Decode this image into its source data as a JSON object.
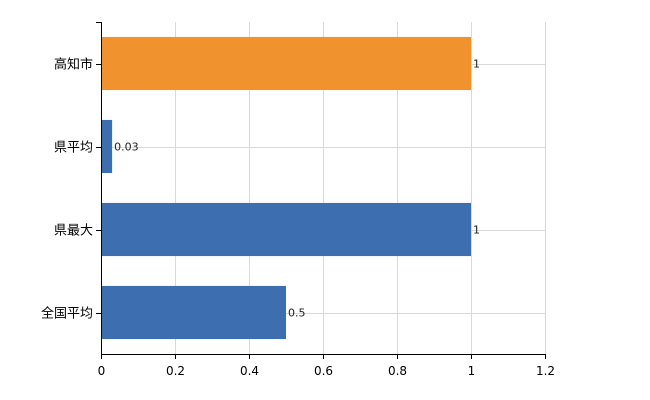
{
  "chart_data": {
    "type": "bar",
    "orientation": "horizontal",
    "categories": [
      "高知市",
      "県平均",
      "県最大",
      "全国平均"
    ],
    "values": [
      1,
      0.03,
      1,
      0.5
    ],
    "value_labels": [
      "1",
      "0.03",
      "1",
      "0.5"
    ],
    "bar_colors": [
      "#f0922e",
      "#3d6fb0",
      "#3d6fb0",
      "#3d6fb0"
    ],
    "xlim": [
      0,
      1.2
    ],
    "xticks": [
      0,
      0.2,
      0.4,
      0.6,
      0.8,
      1,
      1.2
    ],
    "xtick_labels": [
      "0",
      "0.2",
      "0.4",
      "0.6",
      "0.8",
      "1",
      "1.2"
    ],
    "grid": true,
    "title": "",
    "xlabel": "",
    "ylabel": ""
  }
}
